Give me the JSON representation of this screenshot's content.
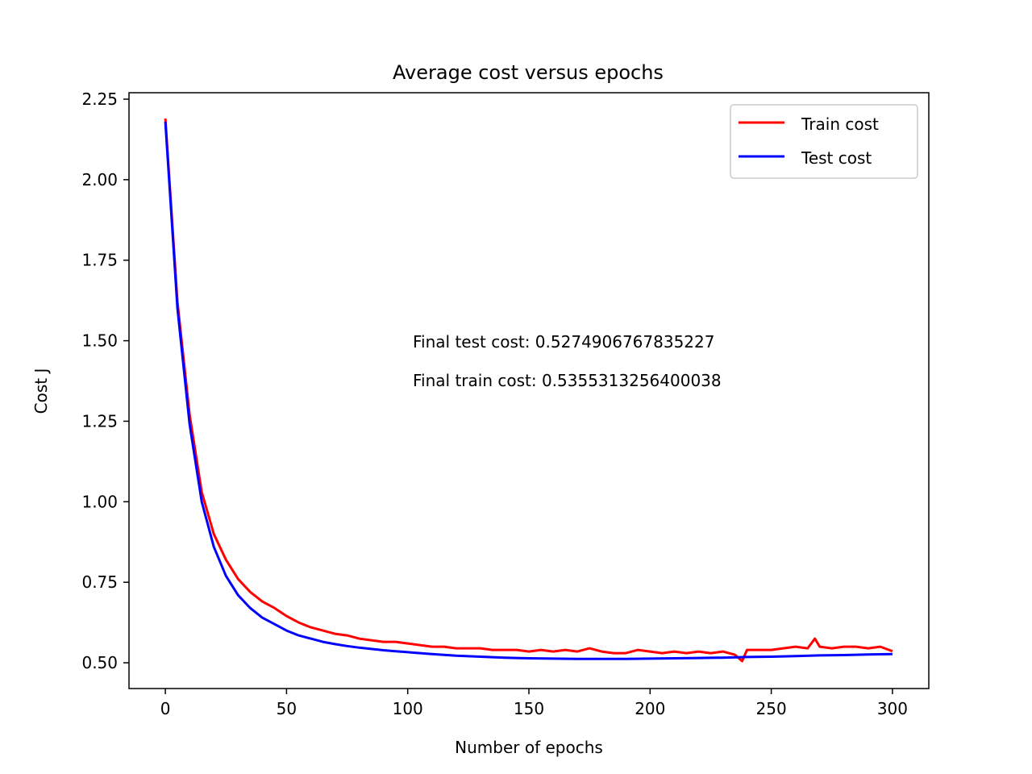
{
  "chart_data": {
    "type": "line",
    "title": "Average cost versus epochs",
    "xlabel": "Number of epochs",
    "ylabel": "Cost J",
    "xlim": [
      -15,
      315
    ],
    "ylim": [
      0.42,
      2.27
    ],
    "xticks": [
      0,
      50,
      100,
      150,
      200,
      250,
      300
    ],
    "xtick_labels": [
      "0",
      "50",
      "100",
      "150",
      "200",
      "250",
      "300"
    ],
    "yticks": [
      0.5,
      0.75,
      1.0,
      1.25,
      1.5,
      1.75,
      2.0,
      2.25
    ],
    "ytick_labels": [
      "0.50",
      "0.75",
      "1.00",
      "1.25",
      "1.50",
      "1.75",
      "2.00",
      "2.25"
    ],
    "grid": false,
    "legend_position": "top-right",
    "annotations": [
      "Final test cost: 0.5274906767835227",
      "Final train cost: 0.5355313256400038"
    ],
    "series": [
      {
        "name": "Train cost",
        "color": "#ff0000",
        "x": [
          0,
          5,
          10,
          15,
          20,
          25,
          30,
          35,
          40,
          45,
          50,
          55,
          60,
          65,
          70,
          75,
          80,
          85,
          90,
          95,
          100,
          105,
          110,
          115,
          120,
          125,
          130,
          135,
          140,
          145,
          150,
          155,
          160,
          165,
          170,
          175,
          180,
          185,
          190,
          195,
          200,
          205,
          210,
          215,
          220,
          225,
          230,
          235,
          238,
          240,
          245,
          250,
          255,
          260,
          265,
          268,
          270,
          275,
          280,
          285,
          290,
          295,
          300
        ],
        "y": [
          2.19,
          1.62,
          1.27,
          1.03,
          0.9,
          0.82,
          0.76,
          0.72,
          0.69,
          0.67,
          0.645,
          0.625,
          0.61,
          0.6,
          0.59,
          0.585,
          0.575,
          0.57,
          0.565,
          0.565,
          0.56,
          0.555,
          0.55,
          0.55,
          0.545,
          0.545,
          0.545,
          0.54,
          0.54,
          0.54,
          0.535,
          0.54,
          0.535,
          0.54,
          0.535,
          0.545,
          0.535,
          0.53,
          0.53,
          0.54,
          0.535,
          0.53,
          0.535,
          0.53,
          0.535,
          0.53,
          0.535,
          0.525,
          0.505,
          0.54,
          0.54,
          0.54,
          0.545,
          0.55,
          0.545,
          0.575,
          0.55,
          0.545,
          0.55,
          0.55,
          0.545,
          0.55,
          0.536
        ]
      },
      {
        "name": "Test cost",
        "color": "#0000ff",
        "x": [
          0,
          5,
          10,
          15,
          20,
          25,
          30,
          35,
          40,
          45,
          50,
          55,
          60,
          65,
          70,
          75,
          80,
          85,
          90,
          95,
          100,
          110,
          120,
          130,
          140,
          150,
          160,
          170,
          180,
          190,
          200,
          210,
          220,
          230,
          240,
          250,
          260,
          270,
          280,
          290,
          300
        ],
        "y": [
          2.18,
          1.6,
          1.24,
          1.0,
          0.86,
          0.77,
          0.71,
          0.67,
          0.64,
          0.62,
          0.6,
          0.585,
          0.575,
          0.565,
          0.558,
          0.552,
          0.547,
          0.543,
          0.539,
          0.536,
          0.533,
          0.527,
          0.522,
          0.519,
          0.516,
          0.514,
          0.513,
          0.512,
          0.512,
          0.512,
          0.513,
          0.514,
          0.515,
          0.516,
          0.518,
          0.519,
          0.521,
          0.523,
          0.524,
          0.526,
          0.527
        ]
      }
    ]
  }
}
